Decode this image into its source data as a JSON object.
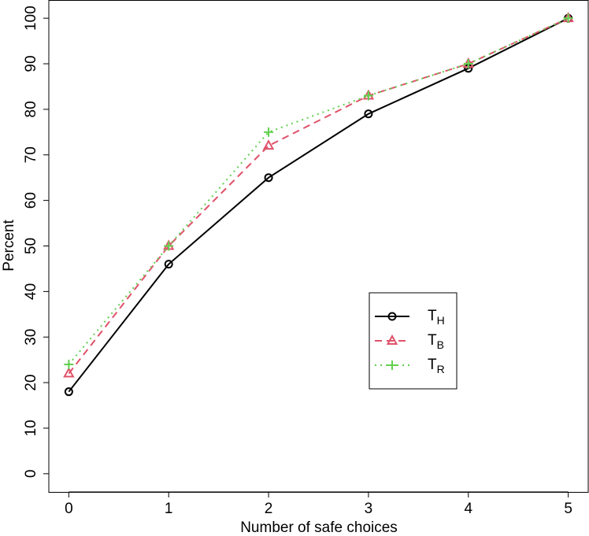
{
  "chart_data": {
    "type": "line",
    "xlabel": "Number of safe choices",
    "ylabel": "Percent",
    "x": [
      0,
      1,
      2,
      3,
      4,
      5
    ],
    "series": [
      {
        "name": "TH",
        "color": "#000000",
        "dash": "solid",
        "marker": "circle",
        "values": [
          18,
          46,
          65,
          79,
          89,
          100
        ]
      },
      {
        "name": "TB",
        "color": "#DF536B",
        "dash": "dashed",
        "marker": "triangle",
        "values": [
          22,
          50,
          72,
          83,
          90,
          100
        ]
      },
      {
        "name": "TR",
        "color": "#61D04F",
        "dash": "dotted",
        "marker": "plus",
        "values": [
          24,
          50,
          75,
          83,
          90,
          100
        ]
      }
    ],
    "xlim": [
      -0.2,
      5.2
    ],
    "ylim": [
      -4,
      104
    ],
    "xticks": [
      0,
      1,
      2,
      3,
      4,
      5
    ],
    "yticks": [
      0,
      10,
      20,
      30,
      40,
      50,
      60,
      70,
      80,
      90,
      100
    ],
    "grid": false,
    "legend_position": "right"
  }
}
